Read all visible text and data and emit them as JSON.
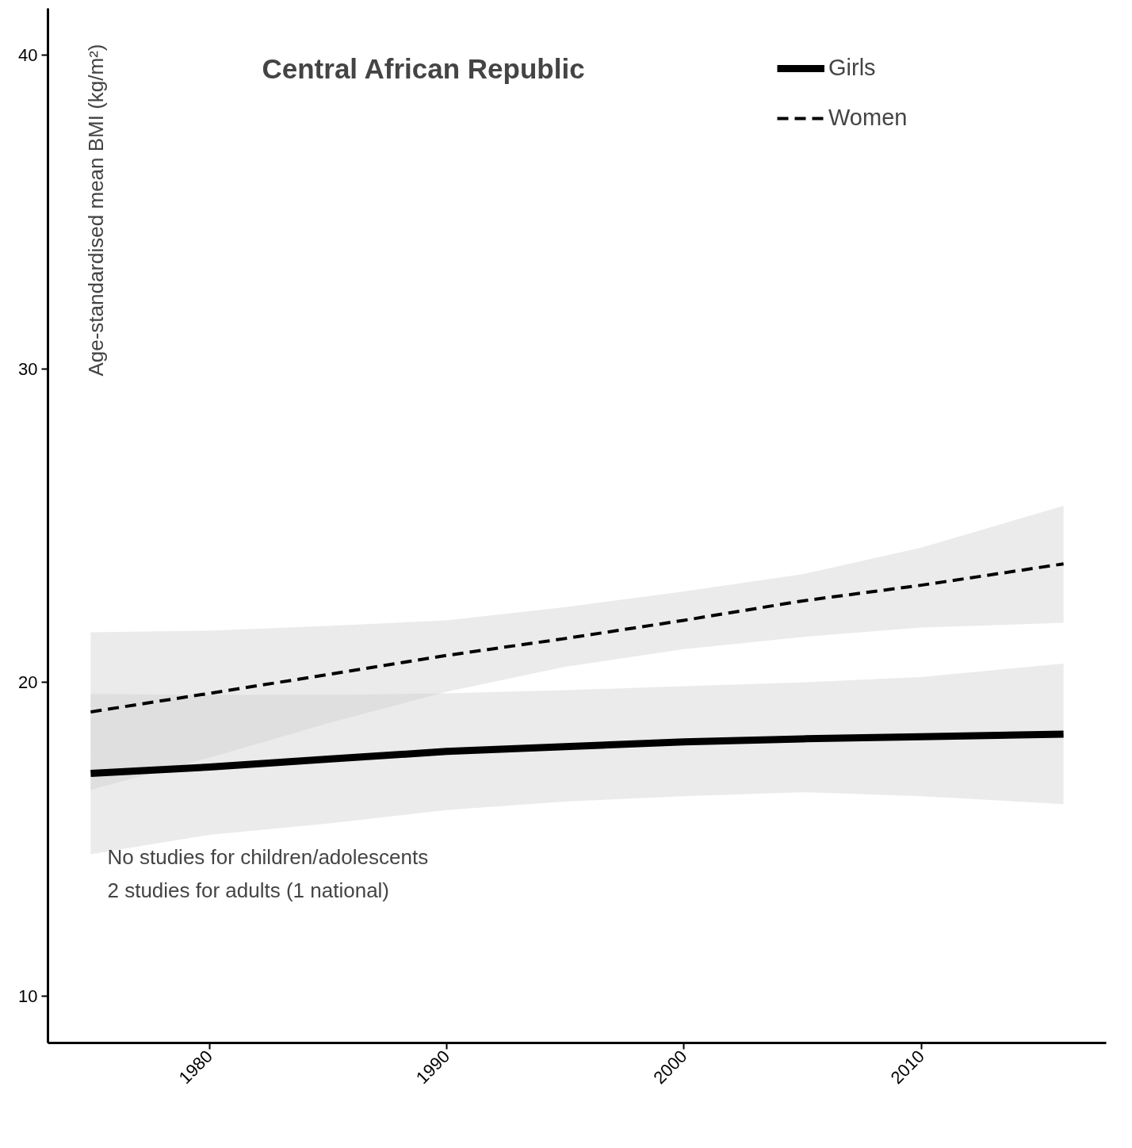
{
  "chart_data": {
    "type": "line",
    "title": "Central African Republic",
    "ylabel": "Age-standardised mean BMI (kg/m²)",
    "annotations": [
      "No studies for children/adolescents",
      "2 studies for adults (1 national)"
    ],
    "xlim": [
      1973.2,
      2017.8
    ],
    "ylim": [
      8.5,
      41.5
    ],
    "xticks": [
      1980,
      1990,
      2000,
      2010
    ],
    "yticks": [
      10,
      20,
      30,
      40
    ],
    "grid": false,
    "legend": "top right",
    "series": [
      {
        "name": "Girls",
        "color": "#000000",
        "line_style": "solid",
        "x": [
          1975,
          1980,
          1985,
          1990,
          1995,
          2000,
          2005,
          2010,
          2016
        ],
        "values": [
          17.1,
          17.3,
          17.55,
          17.8,
          17.95,
          18.1,
          18.2,
          18.27,
          18.35
        ],
        "lower": [
          14.52,
          15.14,
          15.5,
          15.93,
          16.2,
          16.37,
          16.5,
          16.37,
          16.12
        ],
        "upper": [
          19.63,
          19.6,
          19.6,
          19.65,
          19.75,
          19.88,
          20.0,
          20.17,
          20.6
        ]
      },
      {
        "name": "Women",
        "color": "#000000",
        "line_style": "dashed",
        "x": [
          1975,
          1980,
          1985,
          1990,
          1995,
          2000,
          2005,
          2010,
          2016
        ],
        "values": [
          19.06,
          19.65,
          20.25,
          20.86,
          21.4,
          21.98,
          22.6,
          23.1,
          23.78
        ],
        "lower": [
          16.57,
          17.6,
          18.7,
          19.7,
          20.5,
          21.06,
          21.45,
          21.75,
          21.9
        ],
        "upper": [
          21.6,
          21.65,
          21.8,
          21.98,
          22.4,
          22.9,
          23.45,
          24.3,
          25.63
        ]
      }
    ]
  }
}
